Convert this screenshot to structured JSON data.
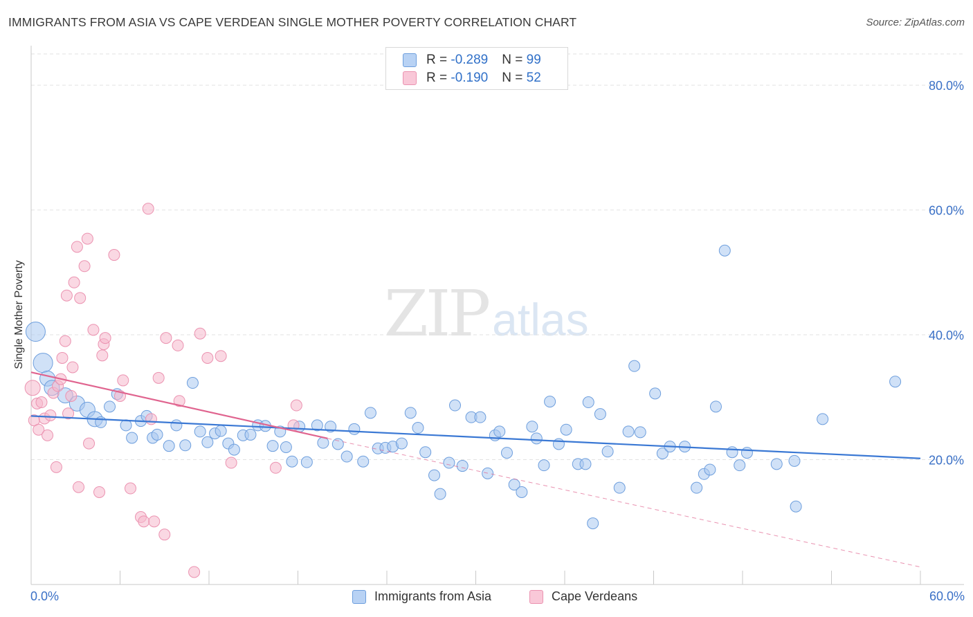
{
  "title": "IMMIGRANTS FROM ASIA VS CAPE VERDEAN SINGLE MOTHER POVERTY CORRELATION CHART",
  "source": "Source: ZipAtlas.com",
  "watermark": {
    "zip": "ZIP",
    "atlas": "atlas"
  },
  "colors": {
    "blue": "#3a78d4",
    "blue_fill": "#a9c8f0",
    "blue_stroke": "#6d9edd",
    "pink": "#e0648f",
    "pink_fill": "#f6b8cc",
    "pink_stroke": "#eb92b0",
    "axis_text": "#3a70c6",
    "grid": "#e2e2e2"
  },
  "legend_top": {
    "rows": [
      {
        "r_label": "R = ",
        "r_value": "-0.289",
        "n_label": "N = ",
        "n_value": "99"
      },
      {
        "r_label": "R = ",
        "r_value": "-0.190",
        "n_label": "N = ",
        "n_value": "52"
      }
    ]
  },
  "legend_bottom": {
    "series1": "Immigrants from Asia",
    "series2": "Cape Verdeans"
  },
  "chart_data": {
    "type": "scatter",
    "title": "IMMIGRANTS FROM ASIA VS CAPE VERDEAN SINGLE MOTHER POVERTY CORRELATION CHART",
    "xlabel": "",
    "ylabel": "Single Mother Poverty",
    "xlim": [
      0,
      60
    ],
    "ylim": [
      0,
      85
    ],
    "x_tick_labels": [
      "0.0%",
      "60.0%"
    ],
    "y_ticks": [
      20,
      40,
      60,
      80
    ],
    "y_tick_labels": [
      "20.0%",
      "40.0%",
      "60.0%",
      "80.0%"
    ],
    "grid": true,
    "legend_position": "bottom",
    "series": [
      {
        "name": "Immigrants from Asia",
        "r": -0.289,
        "n": 99,
        "trend": {
          "x": [
            0,
            60
          ],
          "y": [
            27.0,
            20.2
          ]
        },
        "points": [
          {
            "x": 0.3,
            "y": 40.5,
            "s": 3
          },
          {
            "x": 0.8,
            "y": 35.5,
            "s": 3
          },
          {
            "x": 1.1,
            "y": 33.0,
            "s": 2
          },
          {
            "x": 1.4,
            "y": 31.5,
            "s": 2
          },
          {
            "x": 2.3,
            "y": 30.3,
            "s": 2
          },
          {
            "x": 3.1,
            "y": 29.0,
            "s": 2
          },
          {
            "x": 3.8,
            "y": 28.0,
            "s": 2
          },
          {
            "x": 4.3,
            "y": 26.5,
            "s": 2
          },
          {
            "x": 4.7,
            "y": 26.0,
            "s": 1
          },
          {
            "x": 5.3,
            "y": 28.5,
            "s": 1
          },
          {
            "x": 5.8,
            "y": 30.5,
            "s": 1
          },
          {
            "x": 6.4,
            "y": 25.5,
            "s": 1
          },
          {
            "x": 6.8,
            "y": 23.5,
            "s": 1
          },
          {
            "x": 7.4,
            "y": 26.2,
            "s": 1
          },
          {
            "x": 7.8,
            "y": 27.0,
            "s": 1
          },
          {
            "x": 8.2,
            "y": 23.5,
            "s": 1
          },
          {
            "x": 8.5,
            "y": 24.0,
            "s": 1
          },
          {
            "x": 9.3,
            "y": 22.2,
            "s": 1
          },
          {
            "x": 9.8,
            "y": 25.5,
            "s": 1
          },
          {
            "x": 10.4,
            "y": 22.3,
            "s": 1
          },
          {
            "x": 10.9,
            "y": 32.3,
            "s": 1
          },
          {
            "x": 11.4,
            "y": 24.5,
            "s": 1
          },
          {
            "x": 11.9,
            "y": 22.8,
            "s": 1
          },
          {
            "x": 12.4,
            "y": 24.2,
            "s": 1
          },
          {
            "x": 12.8,
            "y": 24.6,
            "s": 1
          },
          {
            "x": 13.3,
            "y": 22.6,
            "s": 1
          },
          {
            "x": 13.7,
            "y": 21.6,
            "s": 1
          },
          {
            "x": 14.3,
            "y": 23.9,
            "s": 1
          },
          {
            "x": 14.8,
            "y": 24.0,
            "s": 1
          },
          {
            "x": 15.3,
            "y": 25.5,
            "s": 1
          },
          {
            "x": 15.8,
            "y": 25.4,
            "s": 1
          },
          {
            "x": 16.3,
            "y": 22.2,
            "s": 1
          },
          {
            "x": 16.8,
            "y": 24.5,
            "s": 1
          },
          {
            "x": 17.2,
            "y": 22.0,
            "s": 1
          },
          {
            "x": 17.6,
            "y": 19.7,
            "s": 1
          },
          {
            "x": 18.1,
            "y": 25.3,
            "s": 1
          },
          {
            "x": 18.6,
            "y": 19.6,
            "s": 1
          },
          {
            "x": 19.3,
            "y": 25.5,
            "s": 1
          },
          {
            "x": 19.7,
            "y": 22.7,
            "s": 1
          },
          {
            "x": 20.2,
            "y": 25.3,
            "s": 1
          },
          {
            "x": 20.7,
            "y": 22.5,
            "s": 1
          },
          {
            "x": 21.3,
            "y": 20.5,
            "s": 1
          },
          {
            "x": 21.8,
            "y": 24.9,
            "s": 1
          },
          {
            "x": 22.4,
            "y": 19.7,
            "s": 1
          },
          {
            "x": 22.9,
            "y": 27.5,
            "s": 1
          },
          {
            "x": 23.4,
            "y": 21.8,
            "s": 1
          },
          {
            "x": 23.9,
            "y": 21.9,
            "s": 1
          },
          {
            "x": 24.4,
            "y": 22.1,
            "s": 1
          },
          {
            "x": 25.0,
            "y": 22.6,
            "s": 1
          },
          {
            "x": 25.6,
            "y": 27.5,
            "s": 1
          },
          {
            "x": 26.1,
            "y": 25.1,
            "s": 1
          },
          {
            "x": 26.6,
            "y": 21.2,
            "s": 1
          },
          {
            "x": 27.2,
            "y": 17.5,
            "s": 1
          },
          {
            "x": 27.6,
            "y": 14.5,
            "s": 1
          },
          {
            "x": 28.2,
            "y": 19.5,
            "s": 1
          },
          {
            "x": 28.6,
            "y": 28.7,
            "s": 1
          },
          {
            "x": 29.1,
            "y": 19.0,
            "s": 1
          },
          {
            "x": 29.7,
            "y": 26.8,
            "s": 1
          },
          {
            "x": 30.3,
            "y": 26.8,
            "s": 1
          },
          {
            "x": 30.8,
            "y": 17.8,
            "s": 1
          },
          {
            "x": 31.3,
            "y": 23.9,
            "s": 1
          },
          {
            "x": 31.6,
            "y": 24.5,
            "s": 1
          },
          {
            "x": 32.1,
            "y": 21.1,
            "s": 1
          },
          {
            "x": 32.6,
            "y": 16.0,
            "s": 1
          },
          {
            "x": 33.1,
            "y": 14.8,
            "s": 1
          },
          {
            "x": 33.8,
            "y": 25.3,
            "s": 1
          },
          {
            "x": 34.1,
            "y": 23.4,
            "s": 1
          },
          {
            "x": 34.6,
            "y": 19.1,
            "s": 1
          },
          {
            "x": 35.0,
            "y": 29.3,
            "s": 1
          },
          {
            "x": 35.6,
            "y": 22.5,
            "s": 1
          },
          {
            "x": 36.1,
            "y": 24.8,
            "s": 1
          },
          {
            "x": 36.9,
            "y": 19.3,
            "s": 1
          },
          {
            "x": 37.4,
            "y": 19.3,
            "s": 1
          },
          {
            "x": 37.6,
            "y": 29.2,
            "s": 1
          },
          {
            "x": 37.9,
            "y": 9.8,
            "s": 1
          },
          {
            "x": 38.4,
            "y": 27.3,
            "s": 1
          },
          {
            "x": 38.9,
            "y": 21.3,
            "s": 1
          },
          {
            "x": 39.7,
            "y": 15.5,
            "s": 1
          },
          {
            "x": 40.3,
            "y": 24.5,
            "s": 1
          },
          {
            "x": 40.7,
            "y": 35.0,
            "s": 1
          },
          {
            "x": 41.1,
            "y": 24.4,
            "s": 1
          },
          {
            "x": 42.1,
            "y": 30.6,
            "s": 1
          },
          {
            "x": 42.6,
            "y": 21.0,
            "s": 1
          },
          {
            "x": 43.1,
            "y": 22.1,
            "s": 1
          },
          {
            "x": 44.1,
            "y": 22.1,
            "s": 1
          },
          {
            "x": 44.9,
            "y": 15.5,
            "s": 1
          },
          {
            "x": 45.4,
            "y": 17.7,
            "s": 1
          },
          {
            "x": 45.8,
            "y": 18.4,
            "s": 1
          },
          {
            "x": 46.2,
            "y": 28.5,
            "s": 1
          },
          {
            "x": 46.8,
            "y": 53.5,
            "s": 1
          },
          {
            "x": 47.3,
            "y": 21.2,
            "s": 1
          },
          {
            "x": 47.8,
            "y": 19.1,
            "s": 1
          },
          {
            "x": 48.3,
            "y": 21.1,
            "s": 1
          },
          {
            "x": 50.3,
            "y": 19.3,
            "s": 1
          },
          {
            "x": 51.5,
            "y": 19.8,
            "s": 1
          },
          {
            "x": 51.6,
            "y": 12.5,
            "s": 1
          },
          {
            "x": 53.4,
            "y": 26.5,
            "s": 1
          },
          {
            "x": 58.3,
            "y": 32.5,
            "s": 1
          }
        ]
      },
      {
        "name": "Cape Verdeans",
        "r": -0.19,
        "n": 52,
        "trend": {
          "x": [
            0,
            20.0
          ],
          "y": [
            34.0,
            23.4
          ]
        },
        "trend_extension": {
          "x": [
            20.0,
            60
          ],
          "y": [
            23.4,
            2.8
          ]
        },
        "points": [
          {
            "x": 0.1,
            "y": 31.5,
            "s": 2
          },
          {
            "x": 0.2,
            "y": 26.3,
            "s": 1
          },
          {
            "x": 0.4,
            "y": 29.0,
            "s": 1
          },
          {
            "x": 0.5,
            "y": 24.8,
            "s": 1
          },
          {
            "x": 0.7,
            "y": 29.2,
            "s": 1
          },
          {
            "x": 0.9,
            "y": 26.6,
            "s": 1
          },
          {
            "x": 1.1,
            "y": 23.9,
            "s": 1
          },
          {
            "x": 1.3,
            "y": 27.1,
            "s": 1
          },
          {
            "x": 1.5,
            "y": 30.7,
            "s": 1
          },
          {
            "x": 1.7,
            "y": 18.8,
            "s": 1
          },
          {
            "x": 1.8,
            "y": 31.8,
            "s": 1
          },
          {
            "x": 2.0,
            "y": 32.9,
            "s": 1
          },
          {
            "x": 2.1,
            "y": 36.3,
            "s": 1
          },
          {
            "x": 2.3,
            "y": 39.0,
            "s": 1
          },
          {
            "x": 2.4,
            "y": 46.3,
            "s": 1
          },
          {
            "x": 2.5,
            "y": 27.4,
            "s": 1
          },
          {
            "x": 2.7,
            "y": 30.2,
            "s": 1
          },
          {
            "x": 2.8,
            "y": 34.8,
            "s": 1
          },
          {
            "x": 2.9,
            "y": 48.4,
            "s": 1
          },
          {
            "x": 3.1,
            "y": 54.1,
            "s": 1
          },
          {
            "x": 3.2,
            "y": 15.6,
            "s": 1
          },
          {
            "x": 3.3,
            "y": 45.9,
            "s": 1
          },
          {
            "x": 3.6,
            "y": 51.0,
            "s": 1
          },
          {
            "x": 3.8,
            "y": 55.4,
            "s": 1
          },
          {
            "x": 3.9,
            "y": 22.6,
            "s": 1
          },
          {
            "x": 4.2,
            "y": 40.8,
            "s": 1
          },
          {
            "x": 4.6,
            "y": 14.8,
            "s": 1
          },
          {
            "x": 4.8,
            "y": 36.7,
            "s": 1
          },
          {
            "x": 4.9,
            "y": 38.5,
            "s": 1
          },
          {
            "x": 5.0,
            "y": 39.5,
            "s": 1
          },
          {
            "x": 5.6,
            "y": 52.8,
            "s": 1
          },
          {
            "x": 6.0,
            "y": 30.2,
            "s": 1
          },
          {
            "x": 6.2,
            "y": 32.7,
            "s": 1
          },
          {
            "x": 6.7,
            "y": 15.4,
            "s": 1
          },
          {
            "x": 7.4,
            "y": 10.8,
            "s": 1
          },
          {
            "x": 7.6,
            "y": 10.1,
            "s": 1
          },
          {
            "x": 7.9,
            "y": 60.2,
            "s": 1
          },
          {
            "x": 8.1,
            "y": 26.5,
            "s": 1
          },
          {
            "x": 8.3,
            "y": 10.1,
            "s": 1
          },
          {
            "x": 8.6,
            "y": 33.1,
            "s": 1
          },
          {
            "x": 9.0,
            "y": 8.0,
            "s": 1
          },
          {
            "x": 9.1,
            "y": 39.5,
            "s": 1
          },
          {
            "x": 9.9,
            "y": 38.3,
            "s": 1
          },
          {
            "x": 10.0,
            "y": 29.4,
            "s": 1
          },
          {
            "x": 11.0,
            "y": 2.0,
            "s": 1
          },
          {
            "x": 11.4,
            "y": 40.2,
            "s": 1
          },
          {
            "x": 11.9,
            "y": 36.3,
            "s": 1
          },
          {
            "x": 12.8,
            "y": 36.6,
            "s": 1
          },
          {
            "x": 13.5,
            "y": 19.5,
            "s": 1
          },
          {
            "x": 16.5,
            "y": 18.7,
            "s": 1
          },
          {
            "x": 17.7,
            "y": 25.5,
            "s": 1
          },
          {
            "x": 17.9,
            "y": 28.7,
            "s": 1
          }
        ]
      }
    ]
  }
}
